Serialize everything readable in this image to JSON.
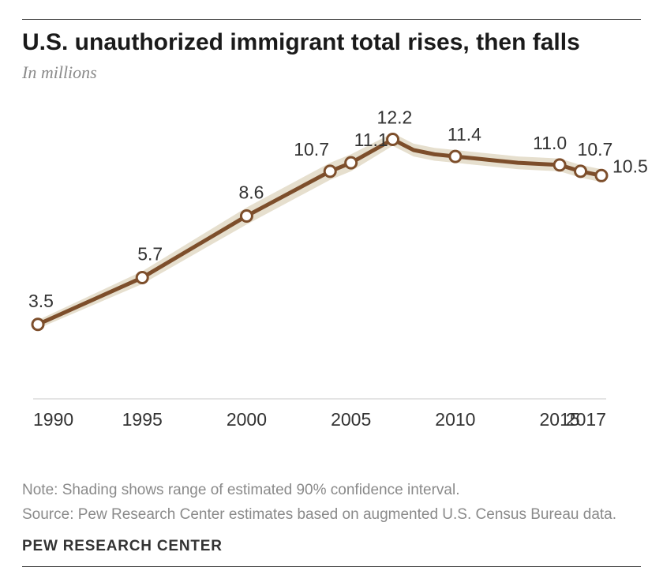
{
  "title": "U.S. unauthorized immigrant total rises, then falls",
  "subtitle": "In millions",
  "note_line1": "Note: Shading shows range of estimated 90% confidence interval.",
  "note_line2": "Source: Pew Research Center estimates based on augmented U.S. Census Bureau data.",
  "attribution": "PEW RESEARCH CENTER",
  "chart": {
    "type": "line",
    "x_axis_labels": [
      "1990",
      "1995",
      "2000",
      "2005",
      "2010",
      "2015",
      "2017"
    ],
    "x_axis_positions": [
      1990,
      1995,
      2000,
      2005,
      2010,
      2015,
      2017
    ],
    "xlim": [
      1990,
      2017
    ],
    "ylim": [
      0,
      13
    ],
    "line_color": "#7d4e2b",
    "line_width": 5,
    "band_color": "#e6dfce",
    "band_opacity": 1,
    "marker_fill": "#ffffff",
    "marker_stroke": "#7d4e2b",
    "marker_stroke_width": 3,
    "marker_radius": 7,
    "baseline_color": "#c9c9c9",
    "baseline_width": 1,
    "markers": [
      {
        "year": 1990,
        "value": 3.5,
        "label": "3.5"
      },
      {
        "year": 1995,
        "value": 5.7,
        "label": "5.7"
      },
      {
        "year": 2000,
        "value": 8.6,
        "label": "8.6"
      },
      {
        "year": 2004,
        "value": 10.7,
        "label": "10.7"
      },
      {
        "year": 2005,
        "value": 11.1,
        "label": "11.1"
      },
      {
        "year": 2007,
        "value": 12.2,
        "label": "12.2"
      },
      {
        "year": 2010,
        "value": 11.4,
        "label": "11.4"
      },
      {
        "year": 2015,
        "value": 11.0,
        "label": "11.0"
      },
      {
        "year": 2016,
        "value": 10.7,
        "label": "10.7"
      },
      {
        "year": 2017,
        "value": 10.5,
        "label": "10.5"
      }
    ],
    "line_points": [
      {
        "year": 1990,
        "value": 3.5
      },
      {
        "year": 1995,
        "value": 5.7
      },
      {
        "year": 2000,
        "value": 8.6
      },
      {
        "year": 2004,
        "value": 10.7
      },
      {
        "year": 2005,
        "value": 11.1
      },
      {
        "year": 2007,
        "value": 12.2
      },
      {
        "year": 2008,
        "value": 11.7
      },
      {
        "year": 2009,
        "value": 11.5
      },
      {
        "year": 2010,
        "value": 11.4
      },
      {
        "year": 2011,
        "value": 11.3
      },
      {
        "year": 2012,
        "value": 11.2
      },
      {
        "year": 2013,
        "value": 11.1
      },
      {
        "year": 2014,
        "value": 11.05
      },
      {
        "year": 2015,
        "value": 11.0
      },
      {
        "year": 2016,
        "value": 10.7
      },
      {
        "year": 2017,
        "value": 10.5
      }
    ],
    "band_upper": [
      {
        "year": 1990,
        "value": 3.7
      },
      {
        "year": 1995,
        "value": 6.0
      },
      {
        "year": 2000,
        "value": 9.0
      },
      {
        "year": 2004,
        "value": 11.1
      },
      {
        "year": 2005,
        "value": 11.5
      },
      {
        "year": 2007,
        "value": 12.5
      },
      {
        "year": 2008,
        "value": 12.0
      },
      {
        "year": 2009,
        "value": 11.8
      },
      {
        "year": 2010,
        "value": 11.7
      },
      {
        "year": 2011,
        "value": 11.6
      },
      {
        "year": 2012,
        "value": 11.5
      },
      {
        "year": 2013,
        "value": 11.4
      },
      {
        "year": 2014,
        "value": 11.35
      },
      {
        "year": 2015,
        "value": 11.3
      },
      {
        "year": 2016,
        "value": 11.0
      },
      {
        "year": 2017,
        "value": 10.8
      }
    ],
    "band_lower": [
      {
        "year": 1990,
        "value": 3.3
      },
      {
        "year": 1995,
        "value": 5.4
      },
      {
        "year": 2000,
        "value": 8.2
      },
      {
        "year": 2004,
        "value": 10.3
      },
      {
        "year": 2005,
        "value": 10.7
      },
      {
        "year": 2007,
        "value": 11.9
      },
      {
        "year": 2008,
        "value": 11.4
      },
      {
        "year": 2009,
        "value": 11.2
      },
      {
        "year": 2010,
        "value": 11.1
      },
      {
        "year": 2011,
        "value": 11.0
      },
      {
        "year": 2012,
        "value": 10.9
      },
      {
        "year": 2013,
        "value": 10.8
      },
      {
        "year": 2014,
        "value": 10.75
      },
      {
        "year": 2015,
        "value": 10.7
      },
      {
        "year": 2016,
        "value": 10.4
      },
      {
        "year": 2017,
        "value": 10.2
      }
    ],
    "label_offsets": {
      "1990": {
        "dx": -12,
        "dy": -22
      },
      "1995": {
        "dx": -6,
        "dy": -22
      },
      "2000": {
        "dx": -10,
        "dy": -22
      },
      "2004": {
        "dx": -46,
        "dy": -20
      },
      "2005": {
        "dx": 4,
        "dy": -21
      },
      "2007": {
        "dx": -20,
        "dy": -20
      },
      "2010": {
        "dx": -10,
        "dy": -20
      },
      "2015": {
        "dx": -34,
        "dy": -20
      },
      "2016": {
        "dx": -4,
        "dy": -20
      },
      "2017": {
        "dx": 14,
        "dy": -4
      }
    }
  }
}
